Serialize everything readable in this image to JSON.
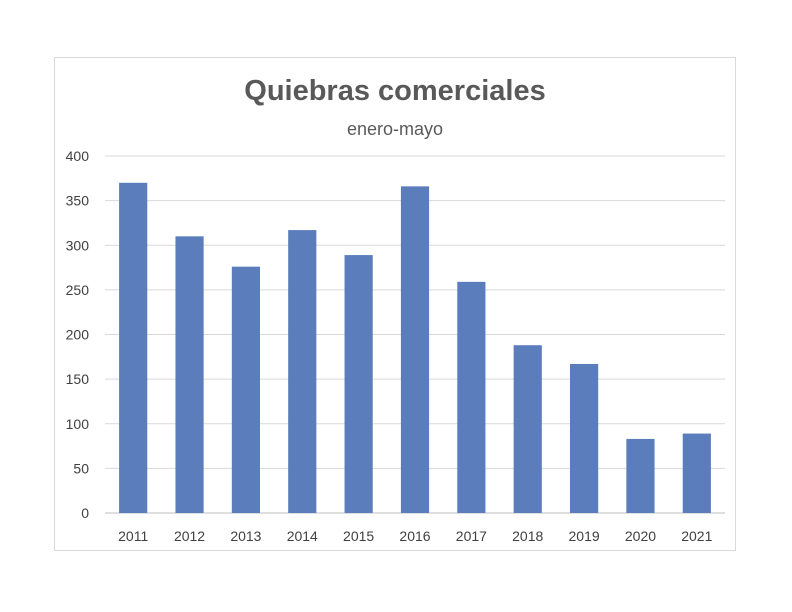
{
  "chart_data": {
    "type": "bar",
    "title": "Quiebras comerciales",
    "subtitle": "enero-mayo",
    "categories": [
      "2011",
      "2012",
      "2013",
      "2014",
      "2015",
      "2016",
      "2017",
      "2018",
      "2019",
      "2020",
      "2021"
    ],
    "values": [
      370,
      310,
      276,
      317,
      289,
      366,
      259,
      188,
      167,
      83,
      89
    ],
    "ylim": [
      0,
      400
    ],
    "yticks": [
      0,
      50,
      100,
      150,
      200,
      250,
      300,
      350,
      400
    ],
    "grid": true,
    "legend": "none",
    "bar_color": "#5b7dbb"
  }
}
